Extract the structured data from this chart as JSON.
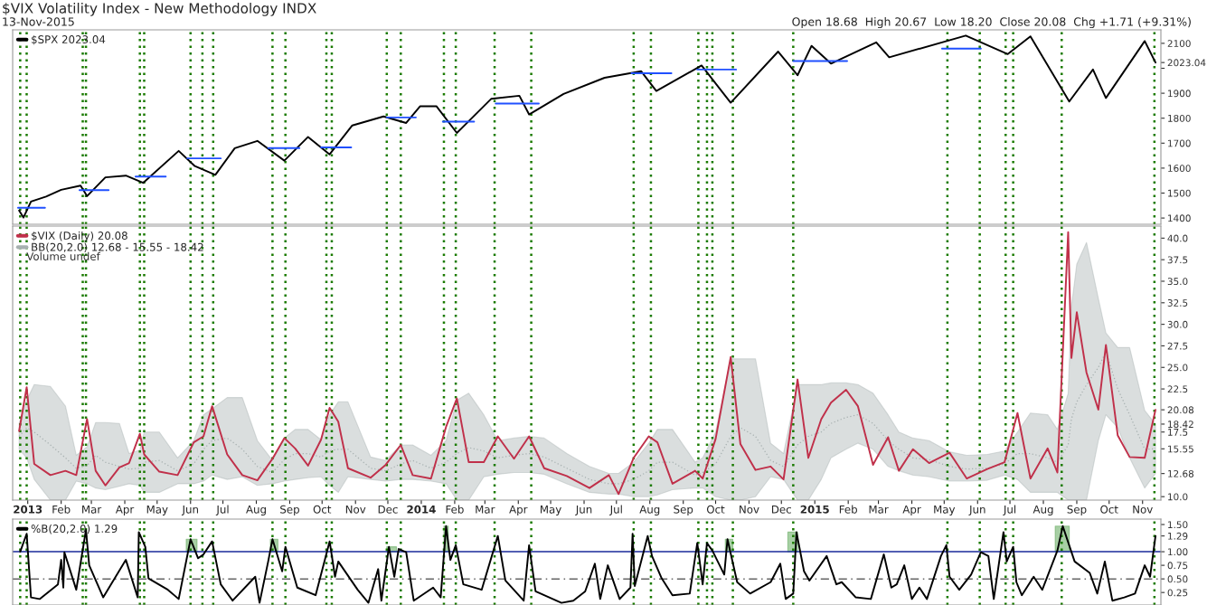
{
  "chart_data": [
    {
      "type": "line",
      "title": "$VIX Volatility Index - New Methodology INDX",
      "annotations": [
        "13-Nov-2015",
        "Open 18.68  High 20.67  Low 18.20  Close 20.08  Chg +1.71 (+9.31%)"
      ],
      "xlim": [
        "2012-12-18",
        "2015-11-18"
      ],
      "ylim": [
        1375,
        2154
      ],
      "yticks": [
        1400,
        1500,
        1600,
        1700,
        1800,
        1900,
        {
          "value": 2000,
          "label": null
        },
        2100,
        {
          "value": 2023.04,
          "label": "2023.04"
        }
      ],
      "tick_labels": "y",
      "legend": "top left",
      "series": [
        {
          "name": "$SPX 2023.04",
          "color": "#000000",
          "x": [
            "2012-12-24",
            "2012-12-28",
            "2013-01-04",
            "2013-01-18",
            "2013-02-01",
            "2013-02-19",
            "2013-02-25",
            "2013-03-14",
            "2013-04-02",
            "2013-04-18",
            "2013-05-21",
            "2013-06-05",
            "2013-06-24",
            "2013-07-12",
            "2013-08-02",
            "2013-08-27",
            "2013-09-18",
            "2013-10-08",
            "2013-10-29",
            "2013-11-27",
            "2013-12-18",
            "2013-12-31",
            "2014-01-15",
            "2014-02-03",
            "2014-03-07",
            "2014-04-02",
            "2014-04-11",
            "2014-05-13",
            "2014-06-20",
            "2014-07-24",
            "2014-08-07",
            "2014-09-18",
            "2014-10-15",
            "2014-11-28",
            "2014-12-16",
            "2014-12-29",
            "2015-01-16",
            "2015-02-27",
            "2015-03-11",
            "2015-05-21",
            "2015-06-29",
            "2015-07-20",
            "2015-08-25",
            "2015-09-16",
            "2015-09-28",
            "2015-11-03",
            "2015-11-13"
          ],
          "values": [
            1430,
            1402,
            1466,
            1486,
            1513,
            1530,
            1488,
            1563,
            1570,
            1541,
            1669,
            1608,
            1573,
            1680,
            1709,
            1630,
            1725,
            1655,
            1771,
            1807,
            1781,
            1848,
            1848,
            1741,
            1878,
            1890,
            1815,
            1897,
            1962,
            1988,
            1909,
            2011,
            1862,
            2067,
            1972,
            2090,
            2019,
            2104,
            2044,
            2131,
            2057,
            2128,
            1867,
            1995,
            1881,
            2109,
            2023.04
          ]
        },
        {
          "color": "#2050ff",
          "x": [
            "2012-12-23",
            "2013-01-17",
            "2013-01-18",
            "2013-02-18",
            "2013-03-17",
            "2013-03-18",
            "2013-04-11",
            "2013-05-09",
            "2013-05-10",
            "2013-05-29",
            "2013-06-29",
            "2013-06-30",
            "2013-08-12",
            "2013-09-10",
            "2013-09-11",
            "2013-09-30",
            "2013-10-28",
            "2013-10-29",
            "2013-11-30",
            "2013-12-27",
            "2013-12-28",
            "2014-01-21",
            "2014-02-19",
            "2014-02-20",
            "2014-03-11",
            "2014-04-20",
            "2014-04-21",
            "2014-07-15",
            "2014-08-21",
            "2014-08-22",
            "2014-09-14",
            "2014-10-20",
            "2014-10-21",
            "2014-12-12",
            "2015-01-31",
            "2015-02-01",
            "2015-04-29",
            "2015-06-04"
          ],
          "values": [
            1441,
            1441,
            null,
            1512,
            1512,
            null,
            1566,
            1566,
            null,
            1639,
            1639,
            null,
            1680,
            1680,
            null,
            1683,
            1683,
            null,
            1803,
            1803,
            null,
            1786,
            1786,
            null,
            1859,
            1859,
            null,
            1980,
            1980,
            null,
            1995,
            1995,
            null,
            2029,
            2029,
            null,
            2079,
            2079
          ]
        }
      ],
      "ref_lines": [
        {
          "axis": "x",
          "value": "2012-12-25",
          "color": "#1a7a00",
          "line_style": "dotted"
        },
        {
          "axis": "x",
          "value": "2012-12-31",
          "color": "#1a7a00",
          "line_style": "dotted"
        },
        {
          "axis": "x",
          "value": "2013-02-21",
          "color": "#1a7a00",
          "line_style": "dotted"
        },
        {
          "axis": "x",
          "value": "2013-02-24",
          "color": "#1a7a00",
          "line_style": "dotted"
        },
        {
          "axis": "x",
          "value": "2013-04-15",
          "color": "#1a7a00",
          "line_style": "dotted"
        },
        {
          "axis": "x",
          "value": "2013-04-19",
          "color": "#1a7a00",
          "line_style": "dotted"
        },
        {
          "axis": "x",
          "value": "2013-06-01",
          "color": "#1a7a00",
          "line_style": "dotted"
        },
        {
          "axis": "x",
          "value": "2013-06-12",
          "color": "#1a7a00",
          "line_style": "dotted"
        },
        {
          "axis": "x",
          "value": "2013-06-22",
          "color": "#1a7a00",
          "line_style": "dotted"
        },
        {
          "axis": "x",
          "value": "2013-08-16",
          "color": "#1a7a00",
          "line_style": "dotted"
        },
        {
          "axis": "x",
          "value": "2013-08-28",
          "color": "#1a7a00",
          "line_style": "dotted"
        },
        {
          "axis": "x",
          "value": "2013-10-05",
          "color": "#1a7a00",
          "line_style": "dotted"
        },
        {
          "axis": "x",
          "value": "2013-10-10",
          "color": "#1a7a00",
          "line_style": "dotted"
        },
        {
          "axis": "x",
          "value": "2013-11-30",
          "color": "#1a7a00",
          "line_style": "dotted"
        },
        {
          "axis": "x",
          "value": "2013-12-13",
          "color": "#1a7a00",
          "line_style": "dotted"
        },
        {
          "axis": "x",
          "value": "2014-01-22",
          "color": "#1a7a00",
          "line_style": "dotted"
        },
        {
          "axis": "x",
          "value": "2014-02-02",
          "color": "#1a7a00",
          "line_style": "dotted"
        },
        {
          "axis": "x",
          "value": "2014-03-10",
          "color": "#1a7a00",
          "line_style": "dotted"
        },
        {
          "axis": "x",
          "value": "2014-04-13",
          "color": "#1a7a00",
          "line_style": "dotted"
        },
        {
          "axis": "x",
          "value": "2014-07-17",
          "color": "#1a7a00",
          "line_style": "dotted"
        },
        {
          "axis": "x",
          "value": "2014-08-02",
          "color": "#1a7a00",
          "line_style": "dotted"
        },
        {
          "axis": "x",
          "value": "2014-09-15",
          "color": "#1a7a00",
          "line_style": "dotted"
        },
        {
          "axis": "x",
          "value": "2014-09-23",
          "color": "#1a7a00",
          "line_style": "dotted"
        },
        {
          "axis": "x",
          "value": "2014-09-28",
          "color": "#1a7a00",
          "line_style": "dotted"
        },
        {
          "axis": "x",
          "value": "2014-10-17",
          "color": "#1a7a00",
          "line_style": "dotted"
        },
        {
          "axis": "x",
          "value": "2014-12-12",
          "color": "#1a7a00",
          "line_style": "dotted"
        },
        {
          "axis": "x",
          "value": "2015-05-04",
          "color": "#1a7a00",
          "line_style": "dotted"
        },
        {
          "axis": "x",
          "value": "2015-06-03",
          "color": "#1a7a00",
          "line_style": "dotted"
        },
        {
          "axis": "x",
          "value": "2015-06-27",
          "color": "#1a7a00",
          "line_style": "dotted"
        },
        {
          "axis": "x",
          "value": "2015-07-04",
          "color": "#1a7a00",
          "line_style": "dotted"
        },
        {
          "axis": "x",
          "value": "2015-08-18",
          "color": "#1a7a00",
          "line_style": "dotted"
        },
        {
          "axis": "x",
          "value": "2015-11-12",
          "color": "#1a7a00",
          "line_style": "dotted"
        }
      ]
    },
    {
      "type": "line",
      "annotations": [
        "Volume undef"
      ],
      "xlim": [
        "2012-12-18",
        "2015-11-18"
      ],
      "ylim": [
        9.6,
        41.4
      ],
      "yticks": [
        {
          "value": 10,
          "label": "10.0"
        },
        {
          "value": 12.68,
          "label": "12.68"
        },
        {
          "value": 15.55,
          "label": "15.55"
        },
        {
          "value": 17.5,
          "label": "17.5"
        },
        {
          "value": 18.42,
          "label": "18.42"
        },
        {
          "value": 20.08,
          "label": "20.08"
        },
        {
          "value": 22.5,
          "label": "22.5"
        },
        {
          "value": 25,
          "label": "25.0"
        },
        {
          "value": 27.5,
          "label": "27.5"
        },
        {
          "value": 30,
          "label": "30.0"
        },
        {
          "value": 32.5,
          "label": "32.5"
        },
        {
          "value": 35,
          "label": "35.0"
        },
        {
          "value": 37.5,
          "label": "37.5"
        },
        {
          "value": 40,
          "label": "40.0"
        }
      ],
      "xticks": [
        {
          "value": "2013-01-01",
          "label": "2013"
        },
        {
          "value": "2013-02-01",
          "label": "Feb"
        },
        {
          "value": "2013-03-01",
          "label": "Mar"
        },
        {
          "value": "2013-04-01",
          "label": "Apr"
        },
        {
          "value": "2013-05-01",
          "label": "May"
        },
        {
          "value": "2013-06-01",
          "label": "Jun"
        },
        {
          "value": "2013-07-01",
          "label": "Jul"
        },
        {
          "value": "2013-08-01",
          "label": "Aug"
        },
        {
          "value": "2013-09-01",
          "label": "Sep"
        },
        {
          "value": "2013-10-01",
          "label": "Oct"
        },
        {
          "value": "2013-11-01",
          "label": "Nov"
        },
        {
          "value": "2013-12-01",
          "label": "Dec"
        },
        {
          "value": "2014-01-01",
          "label": "2014"
        },
        {
          "value": "2014-02-01",
          "label": "Feb"
        },
        {
          "value": "2014-03-01",
          "label": "Mar"
        },
        {
          "value": "2014-04-01",
          "label": "Apr"
        },
        {
          "value": "2014-05-01",
          "label": "May"
        },
        {
          "value": "2014-06-01",
          "label": "Jun"
        },
        {
          "value": "2014-07-01",
          "label": "Jul"
        },
        {
          "value": "2014-08-01",
          "label": "Aug"
        },
        {
          "value": "2014-09-01",
          "label": "Sep"
        },
        {
          "value": "2014-10-01",
          "label": "Oct"
        },
        {
          "value": "2014-11-01",
          "label": "Nov"
        },
        {
          "value": "2014-12-01",
          "label": "Dec"
        },
        {
          "value": "2015-01-01",
          "label": "2015"
        },
        {
          "value": "2015-02-01",
          "label": "Feb"
        },
        {
          "value": "2015-03-01",
          "label": "Mar"
        },
        {
          "value": "2015-04-01",
          "label": "Apr"
        },
        {
          "value": "2015-05-01",
          "label": "May"
        },
        {
          "value": "2015-06-01",
          "label": "Jun"
        },
        {
          "value": "2015-07-01",
          "label": "Jul"
        },
        {
          "value": "2015-08-01",
          "label": "Aug"
        },
        {
          "value": "2015-09-01",
          "label": "Sep"
        },
        {
          "value": "2015-10-01",
          "label": "Oct"
        },
        {
          "value": "2015-11-01",
          "label": "Nov"
        }
      ],
      "legend": "top left",
      "x": [
        "2012-12-24",
        "2012-12-31",
        "2013-01-07",
        "2013-01-22",
        "2013-02-05",
        "2013-02-15",
        "2013-02-25",
        "2013-03-05",
        "2013-03-14",
        "2013-03-27",
        "2013-04-05",
        "2013-04-15",
        "2013-04-19",
        "2013-05-03",
        "2013-05-20",
        "2013-06-04",
        "2013-06-13",
        "2013-06-21",
        "2013-07-05",
        "2013-07-19",
        "2013-08-02",
        "2013-08-16",
        "2013-08-27",
        "2013-09-06",
        "2013-09-18",
        "2013-09-30",
        "2013-10-08",
        "2013-10-16",
        "2013-10-25",
        "2013-11-15",
        "2013-11-29",
        "2013-12-13",
        "2013-12-24",
        "2014-01-10",
        "2014-01-24",
        "2014-02-03",
        "2014-02-14",
        "2014-02-28",
        "2014-03-13",
        "2014-03-28",
        "2014-04-11",
        "2014-04-25",
        "2014-05-16",
        "2014-06-06",
        "2014-06-24",
        "2014-07-03",
        "2014-07-17",
        "2014-07-31",
        "2014-08-08",
        "2014-08-22",
        "2014-09-12",
        "2014-09-19",
        "2014-10-01",
        "2014-10-15",
        "2014-10-24",
        "2014-11-07",
        "2014-11-21",
        "2014-12-03",
        "2014-12-16",
        "2014-12-26",
        "2015-01-07",
        "2015-01-16",
        "2015-01-30",
        "2015-02-10",
        "2015-02-24",
        "2015-03-10",
        "2015-03-20",
        "2015-04-02",
        "2015-04-17",
        "2015-05-06",
        "2015-05-22",
        "2015-06-10",
        "2015-06-26",
        "2015-07-08",
        "2015-07-20",
        "2015-08-05",
        "2015-08-14",
        "2015-08-24",
        "2015-08-27",
        "2015-09-01",
        "2015-09-10",
        "2015-09-21",
        "2015-09-28",
        "2015-10-09",
        "2015-10-20",
        "2015-11-03",
        "2015-11-13"
      ],
      "series": [
        {
          "name": "BB(20,2.0) 12.68 - 15.55 - 18.42",
          "color": "#a7b0b0",
          "line_style": "dotted",
          "values": [
            17.0,
            18.0,
            17.5,
            16.0,
            14.5,
            13.3,
            13.6,
            14.8,
            14.0,
            13.5,
            13.2,
            13.3,
            14.0,
            14.2,
            13.0,
            13.8,
            15.5,
            16.5,
            16.8,
            15.5,
            13.5,
            12.8,
            14.3,
            15.0,
            15.0,
            14.6,
            15.3,
            15.5,
            15.5,
            13.3,
            13.0,
            13.8,
            14.2,
            13.3,
            14.0,
            15.0,
            15.7,
            15.3,
            14.5,
            14.8,
            15.0,
            14.6,
            13.3,
            12.0,
            11.5,
            11.5,
            12.0,
            13.0,
            14.0,
            14.0,
            12.5,
            12.8,
            13.8,
            17.0,
            18.0,
            17.0,
            14.2,
            13.5,
            16.0,
            17.0,
            17.5,
            18.5,
            19.2,
            19.5,
            18.5,
            16.5,
            15.5,
            14.5,
            14.3,
            13.5,
            13.2,
            13.3,
            13.8,
            15.0,
            15.0,
            14.5,
            14.0,
            16.0,
            19.0,
            21.0,
            23.0,
            25.0,
            26.8,
            22.5,
            19.5,
            15.5,
            15.55
          ],
          "lower": [
            15.5,
            14.5,
            12.0,
            9.6,
            9.6,
            11.8,
            11.5,
            11.0,
            10.8,
            11.2,
            11.5,
            11.3,
            10.5,
            10.5,
            11.5,
            11.5,
            11.8,
            12.5,
            12.0,
            12.3,
            11.3,
            11.5,
            11.8,
            12.0,
            12.2,
            12.3,
            11.3,
            10.5,
            12.3,
            12.0,
            11.8,
            12.0,
            12.0,
            11.8,
            11.5,
            9.6,
            9.6,
            12.3,
            12.6,
            12.8,
            12.8,
            12.6,
            11.5,
            10.5,
            10.3,
            10.3,
            10.0,
            10.0,
            10.2,
            10.8,
            11.0,
            11.0,
            10.0,
            9.6,
            9.6,
            10.0,
            12.3,
            12.0,
            9.6,
            9.6,
            12.0,
            14.5,
            15.5,
            16.2,
            15.5,
            13.5,
            13.0,
            12.5,
            12.3,
            11.8,
            11.8,
            11.9,
            12.5,
            12.0,
            10.5,
            10.5,
            10.5,
            9.6,
            9.6,
            9.6,
            9.6,
            16.5,
            19.5,
            18.0,
            14.5,
            11.0,
            12.68
          ],
          "upper": [
            18.5,
            21.2,
            23.0,
            22.8,
            20.5,
            14.8,
            15.8,
            18.6,
            18.6,
            18.5,
            15.0,
            15.4,
            17.5,
            17.5,
            14.5,
            16.5,
            19.5,
            20.2,
            21.5,
            21.5,
            16.5,
            14.2,
            16.8,
            17.8,
            17.8,
            16.6,
            19.5,
            21.0,
            21.0,
            14.6,
            14.2,
            16.0,
            16.0,
            14.8,
            16.5,
            21.2,
            22.0,
            19.5,
            16.5,
            16.8,
            17.0,
            16.8,
            15.0,
            13.5,
            12.7,
            12.7,
            14.0,
            16.2,
            17.8,
            17.8,
            14.0,
            14.5,
            17.5,
            26.0,
            26.0,
            26.0,
            16.2,
            15.0,
            23.0,
            23.0,
            23.0,
            23.2,
            23.2,
            23.0,
            22.0,
            19.5,
            17.5,
            16.8,
            16.5,
            15.2,
            14.8,
            14.9,
            15.3,
            17.5,
            19.7,
            19.5,
            17.8,
            22.0,
            32.0,
            37.0,
            39.5,
            33.0,
            29.0,
            27.3,
            27.3,
            20.0,
            18.42
          ]
        },
        {
          "name": "$VIX (Daily) 20.08",
          "color": "#c0304a",
          "values": [
            17.6,
            22.7,
            13.8,
            12.5,
            13.0,
            12.5,
            19.0,
            13.0,
            11.3,
            13.4,
            13.9,
            17.3,
            14.9,
            12.9,
            12.5,
            16.3,
            17.0,
            20.5,
            14.9,
            12.5,
            11.9,
            14.4,
            16.8,
            15.6,
            13.6,
            16.6,
            20.3,
            18.7,
            13.3,
            12.2,
            13.7,
            16.0,
            12.5,
            12.1,
            18.1,
            21.4,
            14.0,
            14.0,
            17.0,
            14.4,
            17.0,
            13.3,
            12.4,
            11.0,
            12.5,
            10.3,
            14.5,
            17.0,
            16.3,
            11.5,
            13.0,
            12.1,
            16.7,
            26.2,
            16.1,
            13.1,
            13.5,
            12.0,
            23.6,
            14.5,
            19.0,
            20.9,
            22.4,
            20.5,
            13.7,
            16.9,
            13.0,
            15.5,
            13.9,
            15.1,
            12.1,
            13.2,
            14.0,
            19.7,
            12.1,
            15.6,
            12.8,
            40.7,
            26.1,
            31.4,
            24.4,
            20.1,
            27.6,
            17.1,
            14.6,
            14.5,
            20.08
          ]
        }
      ],
      "ref_lines": [
        {
          "axis": "x",
          "value": "2012-12-25",
          "color": "#1a7a00",
          "line_style": "dotted"
        },
        {
          "axis": "x",
          "value": "2012-12-31",
          "color": "#1a7a00",
          "line_style": "dotted"
        },
        {
          "axis": "x",
          "value": "2013-02-21",
          "color": "#1a7a00",
          "line_style": "dotted"
        },
        {
          "axis": "x",
          "value": "2013-02-24",
          "color": "#1a7a00",
          "line_style": "dotted"
        },
        {
          "axis": "x",
          "value": "2013-04-15",
          "color": "#1a7a00",
          "line_style": "dotted"
        },
        {
          "axis": "x",
          "value": "2013-04-19",
          "color": "#1a7a00",
          "line_style": "dotted"
        },
        {
          "axis": "x",
          "value": "2013-06-01",
          "color": "#1a7a00",
          "line_style": "dotted"
        },
        {
          "axis": "x",
          "value": "2013-06-12",
          "color": "#1a7a00",
          "line_style": "dotted"
        },
        {
          "axis": "x",
          "value": "2013-06-22",
          "color": "#1a7a00",
          "line_style": "dotted"
        },
        {
          "axis": "x",
          "value": "2013-08-16",
          "color": "#1a7a00",
          "line_style": "dotted"
        },
        {
          "axis": "x",
          "value": "2013-08-28",
          "color": "#1a7a00",
          "line_style": "dotted"
        },
        {
          "axis": "x",
          "value": "2013-10-05",
          "color": "#1a7a00",
          "line_style": "dotted"
        },
        {
          "axis": "x",
          "value": "2013-10-10",
          "color": "#1a7a00",
          "line_style": "dotted"
        },
        {
          "axis": "x",
          "value": "2013-11-30",
          "color": "#1a7a00",
          "line_style": "dotted"
        },
        {
          "axis": "x",
          "value": "2013-12-13",
          "color": "#1a7a00",
          "line_style": "dotted"
        },
        {
          "axis": "x",
          "value": "2014-01-22",
          "color": "#1a7a00",
          "line_style": "dotted"
        },
        {
          "axis": "x",
          "value": "2014-02-02",
          "color": "#1a7a00",
          "line_style": "dotted"
        },
        {
          "axis": "x",
          "value": "2014-03-10",
          "color": "#1a7a00",
          "line_style": "dotted"
        },
        {
          "axis": "x",
          "value": "2014-04-13",
          "color": "#1a7a00",
          "line_style": "dotted"
        },
        {
          "axis": "x",
          "value": "2014-07-17",
          "color": "#1a7a00",
          "line_style": "dotted"
        },
        {
          "axis": "x",
          "value": "2014-08-02",
          "color": "#1a7a00",
          "line_style": "dotted"
        },
        {
          "axis": "x",
          "value": "2014-09-15",
          "color": "#1a7a00",
          "line_style": "dotted"
        },
        {
          "axis": "x",
          "value": "2014-09-23",
          "color": "#1a7a00",
          "line_style": "dotted"
        },
        {
          "axis": "x",
          "value": "2014-09-28",
          "color": "#1a7a00",
          "line_style": "dotted"
        },
        {
          "axis": "x",
          "value": "2014-10-17",
          "color": "#1a7a00",
          "line_style": "dotted"
        },
        {
          "axis": "x",
          "value": "2014-12-12",
          "color": "#1a7a00",
          "line_style": "dotted"
        },
        {
          "axis": "x",
          "value": "2015-05-04",
          "color": "#1a7a00",
          "line_style": "dotted"
        },
        {
          "axis": "x",
          "value": "2015-06-03",
          "color": "#1a7a00",
          "line_style": "dotted"
        },
        {
          "axis": "x",
          "value": "2015-06-27",
          "color": "#1a7a00",
          "line_style": "dotted"
        },
        {
          "axis": "x",
          "value": "2015-07-04",
          "color": "#1a7a00",
          "line_style": "dotted"
        },
        {
          "axis": "x",
          "value": "2015-08-18",
          "color": "#1a7a00",
          "line_style": "dotted"
        },
        {
          "axis": "x",
          "value": "2015-11-12",
          "color": "#1a7a00",
          "line_style": "dotted"
        }
      ]
    },
    {
      "type": "line",
      "xlim": [
        "2012-12-18",
        "2015-11-18"
      ],
      "ylim": [
        0.02,
        1.6
      ],
      "yticks": [
        {
          "value": 0.25,
          "label": "0.25"
        },
        {
          "value": 0.5,
          "label": "0.50"
        },
        {
          "value": 0.75,
          "label": "0.75"
        },
        {
          "value": 1.0,
          "label": "1.00"
        },
        {
          "value": 1.29,
          "label": "1.29"
        },
        {
          "value": 1.5,
          "label": "1.50"
        }
      ],
      "tick_labels": "y",
      "legend": "top left",
      "series": [
        {
          "name": "%B(20,2.0) 1.29",
          "color": "#000000",
          "x": [
            "2012-12-25",
            "2012-12-31",
            "2013-01-04",
            "2013-01-12",
            "2013-01-29",
            "2013-02-01",
            "2013-02-03",
            "2013-02-04",
            "2013-02-15",
            "2013-02-24",
            "2013-02-27",
            "2013-03-12",
            "2013-04-02",
            "2013-04-13",
            "2013-04-14",
            "2013-04-20",
            "2013-04-23",
            "2013-05-11",
            "2013-05-21",
            "2013-06-01",
            "2013-06-08",
            "2013-06-13",
            "2013-06-21",
            "2013-06-29",
            "2013-07-10",
            "2013-07-31",
            "2013-08-04",
            "2013-08-12",
            "2013-08-16",
            "2013-08-25",
            "2013-08-28",
            "2013-09-08",
            "2013-09-25",
            "2013-10-08",
            "2013-10-13",
            "2013-10-16",
            "2013-11-03",
            "2013-11-13",
            "2013-11-22",
            "2013-11-25",
            "2013-12-02",
            "2013-12-07",
            "2013-12-11",
            "2013-12-18",
            "2013-12-25",
            "2014-01-12",
            "2014-01-19",
            "2014-01-24",
            "2014-01-28",
            "2014-02-02",
            "2014-02-09",
            "2014-02-26",
            "2014-03-13",
            "2014-03-20",
            "2014-04-06",
            "2014-04-11",
            "2014-04-17",
            "2014-05-11",
            "2014-05-22",
            "2014-06-02",
            "2014-06-11",
            "2014-06-16",
            "2014-06-23",
            "2014-07-04",
            "2014-07-14",
            "2014-07-16",
            "2014-07-18",
            "2014-07-30",
            "2014-08-03",
            "2014-08-12",
            "2014-08-22",
            "2014-09-07",
            "2014-09-14",
            "2014-09-19",
            "2014-09-23",
            "2014-09-28",
            "2014-10-09",
            "2014-10-12",
            "2014-10-21",
            "2014-11-02",
            "2014-11-21",
            "2014-11-30",
            "2014-12-05",
            "2014-12-12",
            "2014-12-15",
            "2014-12-22",
            "2014-12-27",
            "2015-01-12",
            "2015-01-21",
            "2015-01-26",
            "2015-02-08",
            "2015-02-22",
            "2015-03-06",
            "2015-03-13",
            "2015-03-18",
            "2015-03-25",
            "2015-04-01",
            "2015-04-08",
            "2015-04-15",
            "2015-04-28",
            "2015-05-03",
            "2015-05-06",
            "2015-05-15",
            "2015-05-26",
            "2015-06-04",
            "2015-06-11",
            "2015-06-16",
            "2015-06-25",
            "2015-06-28",
            "2015-07-04",
            "2015-07-07",
            "2015-07-12",
            "2015-07-23",
            "2015-07-31",
            "2015-08-14",
            "2015-08-19",
            "2015-08-30",
            "2015-09-13",
            "2015-09-20",
            "2015-09-27",
            "2015-10-04",
            "2015-10-15",
            "2015-10-25",
            "2015-11-03",
            "2015-11-08",
            "2015-11-13"
          ],
          "values": [
            1.0,
            1.33,
            0.16,
            0.13,
            0.4,
            0.85,
            0.34,
            0.99,
            0.3,
            1.4,
            0.75,
            0.16,
            0.85,
            0.16,
            1.36,
            1.09,
            0.51,
            0.3,
            0.13,
            1.23,
            0.88,
            0.95,
            1.19,
            0.4,
            0.1,
            0.54,
            0.06,
            0.82,
            1.23,
            0.64,
            1.09,
            0.34,
            0.2,
            1.19,
            0.54,
            0.82,
            0.3,
            0.06,
            0.68,
            0.1,
            1.09,
            0.54,
            1.05,
            0.99,
            0.1,
            0.34,
            0.16,
            1.47,
            0.85,
            1.12,
            0.4,
            0.3,
            1.29,
            0.47,
            0.1,
            1.12,
            0.27,
            0.06,
            0.1,
            0.27,
            0.78,
            0.13,
            0.75,
            0.13,
            0.34,
            1.33,
            0.37,
            1.29,
            0.92,
            0.51,
            0.2,
            0.23,
            1.16,
            0.4,
            1.16,
            1.02,
            0.58,
            1.23,
            0.44,
            0.23,
            0.44,
            0.78,
            0.13,
            0.23,
            1.36,
            0.64,
            0.47,
            0.92,
            0.4,
            0.44,
            0.16,
            0.13,
            0.95,
            0.34,
            0.4,
            0.75,
            0.13,
            0.34,
            0.13,
            0.92,
            1.12,
            0.54,
            0.3,
            0.58,
            0.99,
            0.92,
            0.13,
            1.36,
            0.82,
            1.09,
            0.44,
            0.2,
            0.54,
            0.3,
            1.02,
            1.47,
            0.82,
            0.61,
            0.23,
            0.82,
            0.1,
            0.16,
            0.23,
            0.75,
            0.54,
            1.29
          ]
        }
      ],
      "bands": [
        {
          "axis": "x",
          "from": "2013-05-28",
          "to": "2013-06-07",
          "color": "#5fa85a"
        },
        {
          "axis": "x",
          "from": "2013-08-14",
          "to": "2013-08-21",
          "color": "#5fa85a"
        },
        {
          "axis": "x",
          "from": "2013-11-30",
          "to": "2013-12-09",
          "color": "#5fa85a"
        },
        {
          "axis": "x",
          "from": "2014-01-22",
          "to": "2014-01-26",
          "color": "#5fa85a"
        },
        {
          "axis": "x",
          "from": "2014-10-10",
          "to": "2014-10-17",
          "color": "#5fa85a"
        },
        {
          "axis": "x",
          "from": "2014-12-07",
          "to": "2014-12-16",
          "color": "#5fa85a"
        },
        {
          "axis": "x",
          "from": "2015-08-12",
          "to": "2015-08-25",
          "color": "#5fa85a"
        }
      ],
      "ref_lines": [
        {
          "axis": "y",
          "value": 1.0,
          "color": "#1a2a9a",
          "line_style": "solid"
        },
        {
          "axis": "y",
          "value": 0.5,
          "color": "#666666",
          "line_style": "dashed"
        },
        {
          "axis": "x",
          "value": "2012-12-25",
          "color": "#1a7a00",
          "line_style": "dotted"
        },
        {
          "axis": "x",
          "value": "2012-12-31",
          "color": "#1a7a00",
          "line_style": "dotted"
        },
        {
          "axis": "x",
          "value": "2013-02-21",
          "color": "#1a7a00",
          "line_style": "dotted"
        },
        {
          "axis": "x",
          "value": "2013-02-24",
          "color": "#1a7a00",
          "line_style": "dotted"
        },
        {
          "axis": "x",
          "value": "2013-04-15",
          "color": "#1a7a00",
          "line_style": "dotted"
        },
        {
          "axis": "x",
          "value": "2013-04-19",
          "color": "#1a7a00",
          "line_style": "dotted"
        },
        {
          "axis": "x",
          "value": "2013-06-01",
          "color": "#1a7a00",
          "line_style": "dotted"
        },
        {
          "axis": "x",
          "value": "2013-06-12",
          "color": "#1a7a00",
          "line_style": "dotted"
        },
        {
          "axis": "x",
          "value": "2013-06-22",
          "color": "#1a7a00",
          "line_style": "dotted"
        },
        {
          "axis": "x",
          "value": "2013-08-16",
          "color": "#1a7a00",
          "line_style": "dotted"
        },
        {
          "axis": "x",
          "value": "2013-08-28",
          "color": "#1a7a00",
          "line_style": "dotted"
        },
        {
          "axis": "x",
          "value": "2013-10-05",
          "color": "#1a7a00",
          "line_style": "dotted"
        },
        {
          "axis": "x",
          "value": "2013-10-10",
          "color": "#1a7a00",
          "line_style": "dotted"
        },
        {
          "axis": "x",
          "value": "2013-11-30",
          "color": "#1a7a00",
          "line_style": "dotted"
        },
        {
          "axis": "x",
          "value": "2013-12-13",
          "color": "#1a7a00",
          "line_style": "dotted"
        },
        {
          "axis": "x",
          "value": "2014-01-22",
          "color": "#1a7a00",
          "line_style": "dotted"
        },
        {
          "axis": "x",
          "value": "2014-02-02",
          "color": "#1a7a00",
          "line_style": "dotted"
        },
        {
          "axis": "x",
          "value": "2014-03-10",
          "color": "#1a7a00",
          "line_style": "dotted"
        },
        {
          "axis": "x",
          "value": "2014-04-13",
          "color": "#1a7a00",
          "line_style": "dotted"
        },
        {
          "axis": "x",
          "value": "2014-07-17",
          "color": "#1a7a00",
          "line_style": "dotted"
        },
        {
          "axis": "x",
          "value": "2014-08-02",
          "color": "#1a7a00",
          "line_style": "dotted"
        },
        {
          "axis": "x",
          "value": "2014-09-15",
          "color": "#1a7a00",
          "line_style": "dotted"
        },
        {
          "axis": "x",
          "value": "2014-09-23",
          "color": "#1a7a00",
          "line_style": "dotted"
        },
        {
          "axis": "x",
          "value": "2014-09-28",
          "color": "#1a7a00",
          "line_style": "dotted"
        },
        {
          "axis": "x",
          "value": "2014-10-17",
          "color": "#1a7a00",
          "line_style": "dotted"
        },
        {
          "axis": "x",
          "value": "2014-12-12",
          "color": "#1a7a00",
          "line_style": "dotted"
        },
        {
          "axis": "x",
          "value": "2015-05-04",
          "color": "#1a7a00",
          "line_style": "dotted"
        },
        {
          "axis": "x",
          "value": "2015-06-03",
          "color": "#1a7a00",
          "line_style": "dotted"
        },
        {
          "axis": "x",
          "value": "2015-06-27",
          "color": "#1a7a00",
          "line_style": "dotted"
        },
        {
          "axis": "x",
          "value": "2015-07-04",
          "color": "#1a7a00",
          "line_style": "dotted"
        },
        {
          "axis": "x",
          "value": "2015-08-18",
          "color": "#1a7a00",
          "line_style": "dotted"
        },
        {
          "axis": "x",
          "value": "2015-11-12",
          "color": "#1a7a00",
          "line_style": "dotted"
        }
      ]
    }
  ]
}
